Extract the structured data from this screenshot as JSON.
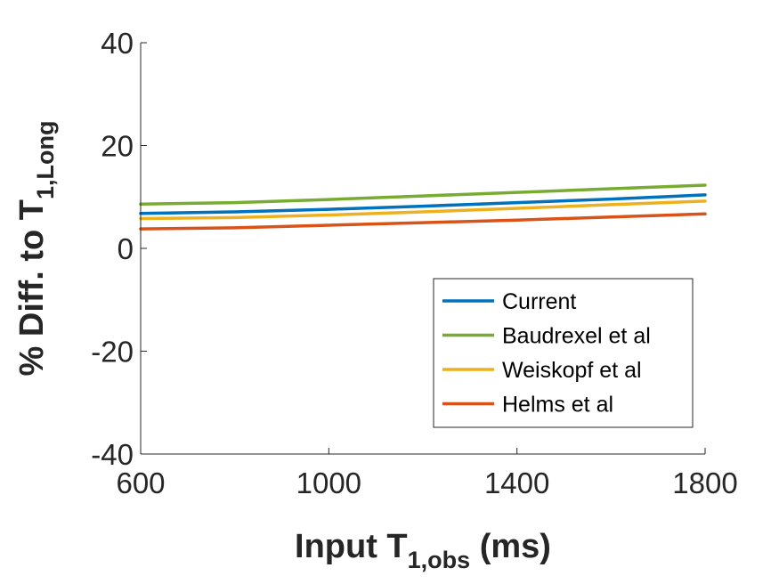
{
  "chart_data": {
    "type": "line",
    "xlabel": {
      "main": "Input T",
      "sub": "1,obs",
      "tail": " (ms)"
    },
    "ylabel": {
      "main": "% Diff. to T",
      "sub": "1,Long"
    },
    "xlim": [
      600,
      1800
    ],
    "ylim": [
      -40,
      40
    ],
    "x_ticks": [
      600,
      1000,
      1400,
      1800
    ],
    "y_ticks": [
      -40,
      -20,
      0,
      20,
      40
    ],
    "grid": false,
    "legend_position": "bottom-right",
    "x": [
      600,
      800,
      1000,
      1200,
      1400,
      1600,
      1800
    ],
    "series": [
      {
        "name": "Current",
        "color": "#0072BD",
        "values": [
          6.8,
          7.1,
          7.6,
          8.2,
          8.9,
          9.6,
          10.4
        ]
      },
      {
        "name": "Baudrexel et al",
        "color": "#77AC30",
        "values": [
          8.6,
          8.9,
          9.5,
          10.2,
          10.9,
          11.6,
          12.3
        ]
      },
      {
        "name": "Weiskopf et al",
        "color": "#EDB120",
        "values": [
          5.8,
          6.0,
          6.5,
          7.1,
          7.8,
          8.5,
          9.2
        ]
      },
      {
        "name": "Helms et al",
        "color": "#D95319",
        "values": [
          3.8,
          4.0,
          4.5,
          5.0,
          5.5,
          6.1,
          6.7
        ]
      }
    ]
  }
}
